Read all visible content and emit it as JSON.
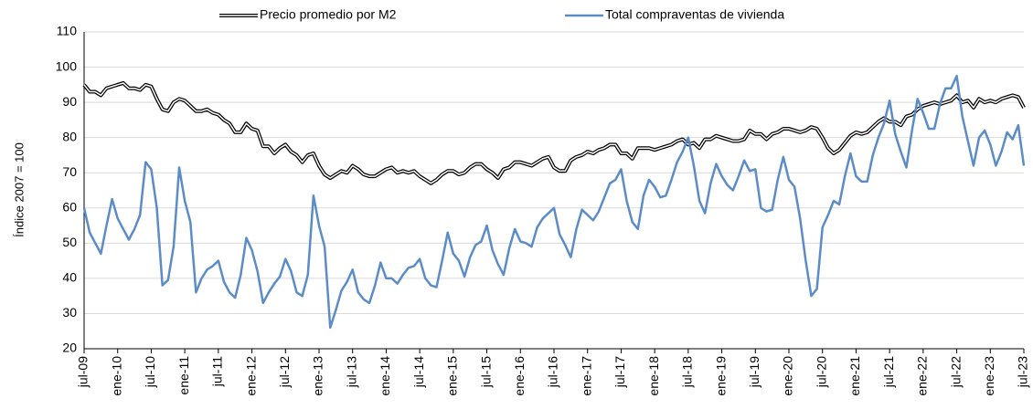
{
  "chart_data": {
    "type": "line",
    "y_label": "Índice 2007 = 100",
    "categories": [
      "jul-09",
      null,
      null,
      null,
      null,
      null,
      "ene-10",
      null,
      null,
      null,
      null,
      null,
      "jul-10",
      null,
      null,
      null,
      null,
      null,
      "ene-11",
      null,
      null,
      null,
      null,
      null,
      "jul-11",
      null,
      null,
      null,
      null,
      null,
      "ene-12",
      null,
      null,
      null,
      null,
      null,
      "jul-12",
      null,
      null,
      null,
      null,
      null,
      "ene-13",
      null,
      null,
      null,
      null,
      null,
      "jul-13",
      null,
      null,
      null,
      null,
      null,
      "ene-14",
      null,
      null,
      null,
      null,
      null,
      "jul-14",
      null,
      null,
      null,
      null,
      null,
      "ene-15",
      null,
      null,
      null,
      null,
      null,
      "jul-15",
      null,
      null,
      null,
      null,
      null,
      "ene-16",
      null,
      null,
      null,
      null,
      null,
      "jul-16",
      null,
      null,
      null,
      null,
      null,
      "ene-17",
      null,
      null,
      null,
      null,
      null,
      "jul-17",
      null,
      null,
      null,
      null,
      null,
      "ene-18",
      null,
      null,
      null,
      null,
      null,
      "jul-18",
      null,
      null,
      null,
      null,
      null,
      "ene-19",
      null,
      null,
      null,
      null,
      null,
      "jul-19",
      null,
      null,
      null,
      null,
      null,
      "ene-20",
      null,
      null,
      null,
      null,
      null,
      "jul-20",
      null,
      null,
      null,
      null,
      null,
      "ene-21",
      null,
      null,
      null,
      null,
      null,
      "jul-21",
      null,
      null,
      null,
      null,
      null,
      "ene-22",
      null,
      null,
      null,
      null,
      null,
      "jul-22",
      null,
      null,
      null,
      null,
      null,
      "ene-23",
      null,
      null,
      null,
      null,
      null,
      "jul-23"
    ],
    "series": [
      {
        "name": "Precio promedio por M2",
        "color": "#000000",
        "values": [
          95,
          93,
          93,
          92,
          94,
          94.5,
          95,
          95.5,
          94,
          94,
          93.5,
          95,
          94.5,
          91,
          88,
          87.5,
          90,
          91,
          90.5,
          89,
          87.5,
          87.5,
          88,
          87,
          86.5,
          85,
          84,
          81.5,
          81.5,
          84,
          82.5,
          82,
          77.5,
          77.5,
          75.5,
          77,
          78,
          76,
          75,
          73,
          75,
          75.5,
          72,
          69.5,
          68.5,
          69.5,
          70.5,
          70,
          72,
          71,
          69.5,
          69,
          69,
          70,
          71,
          71.5,
          70,
          70.5,
          70,
          70.5,
          69,
          68,
          67,
          68,
          69.5,
          70.5,
          70.5,
          69.5,
          70,
          71.5,
          72.5,
          72.5,
          71,
          70,
          68.5,
          71,
          71.5,
          73,
          73,
          72.5,
          72,
          73,
          74,
          74.5,
          71.5,
          70.5,
          70.5,
          73.5,
          74.5,
          75,
          76,
          75.5,
          76.5,
          77,
          78,
          78,
          75.5,
          75.5,
          74,
          77,
          77,
          77,
          76.5,
          77,
          77.5,
          78,
          79,
          79.5,
          78,
          78.5,
          77,
          79.5,
          79.5,
          80.5,
          80,
          79.5,
          79,
          79,
          79.5,
          82,
          81,
          81,
          79.5,
          81,
          81.5,
          82.5,
          82.5,
          82,
          81.5,
          82,
          83,
          82.5,
          80,
          77,
          75.5,
          76.5,
          78.5,
          80.5,
          81.5,
          81,
          81.5,
          83,
          84.5,
          85.5,
          84.5,
          84.5,
          83.5,
          86,
          86.5,
          88,
          89,
          89.5,
          90,
          89.5,
          90,
          90.5,
          92,
          90,
          90.5,
          88.5,
          91,
          90,
          90.5,
          90,
          91,
          91.5,
          92,
          91.5,
          88.5
        ]
      },
      {
        "name": "Total compraventas de vivienda",
        "color": "#5b8cc8",
        "values": [
          60,
          53,
          50,
          47,
          55,
          62.5,
          57,
          54,
          51,
          54,
          58,
          73,
          71,
          60,
          38,
          39.5,
          49,
          71.5,
          62,
          56,
          36,
          40,
          42.5,
          43.5,
          45,
          39,
          36,
          34.5,
          41,
          51.5,
          48,
          42,
          33,
          36,
          38.5,
          40.5,
          45.5,
          42,
          36,
          35,
          41,
          63.5,
          55,
          49,
          26,
          31,
          36.5,
          39,
          42.5,
          36,
          34,
          33,
          38,
          44.5,
          40,
          40,
          38.5,
          41,
          43,
          43.5,
          45.5,
          40,
          38,
          37.5,
          45,
          53,
          47,
          45,
          40.5,
          46,
          49.5,
          50.5,
          55,
          48,
          44,
          41,
          48.5,
          54,
          50.5,
          50,
          49,
          54.5,
          57,
          58.5,
          60,
          52.5,
          49.5,
          46,
          54,
          59.5,
          58,
          56.5,
          59,
          63,
          67,
          68,
          71,
          62,
          56,
          54,
          63.5,
          68,
          66,
          63,
          63.5,
          68,
          73,
          76,
          80,
          72,
          62,
          58.5,
          67,
          72.5,
          69,
          66.5,
          65,
          69,
          73.5,
          70.5,
          71,
          60,
          59,
          59.5,
          68,
          74.5,
          68,
          66,
          57,
          45,
          35,
          37,
          54.5,
          58,
          62,
          61,
          69,
          75.5,
          69,
          67.5,
          67.5,
          75,
          80,
          84,
          90.5,
          81,
          76,
          71.5,
          82,
          91,
          87,
          82.5,
          82.5,
          89.5,
          94,
          94,
          97.5,
          86,
          79,
          72,
          80,
          82,
          78,
          72,
          76,
          81.5,
          79.5,
          83.5,
          72
        ]
      }
    ],
    "ylim": [
      20,
      110
    ],
    "yticks": [
      20,
      30,
      40,
      50,
      60,
      70,
      80,
      90,
      100,
      110
    ],
    "grid": true,
    "legend": "top"
  }
}
